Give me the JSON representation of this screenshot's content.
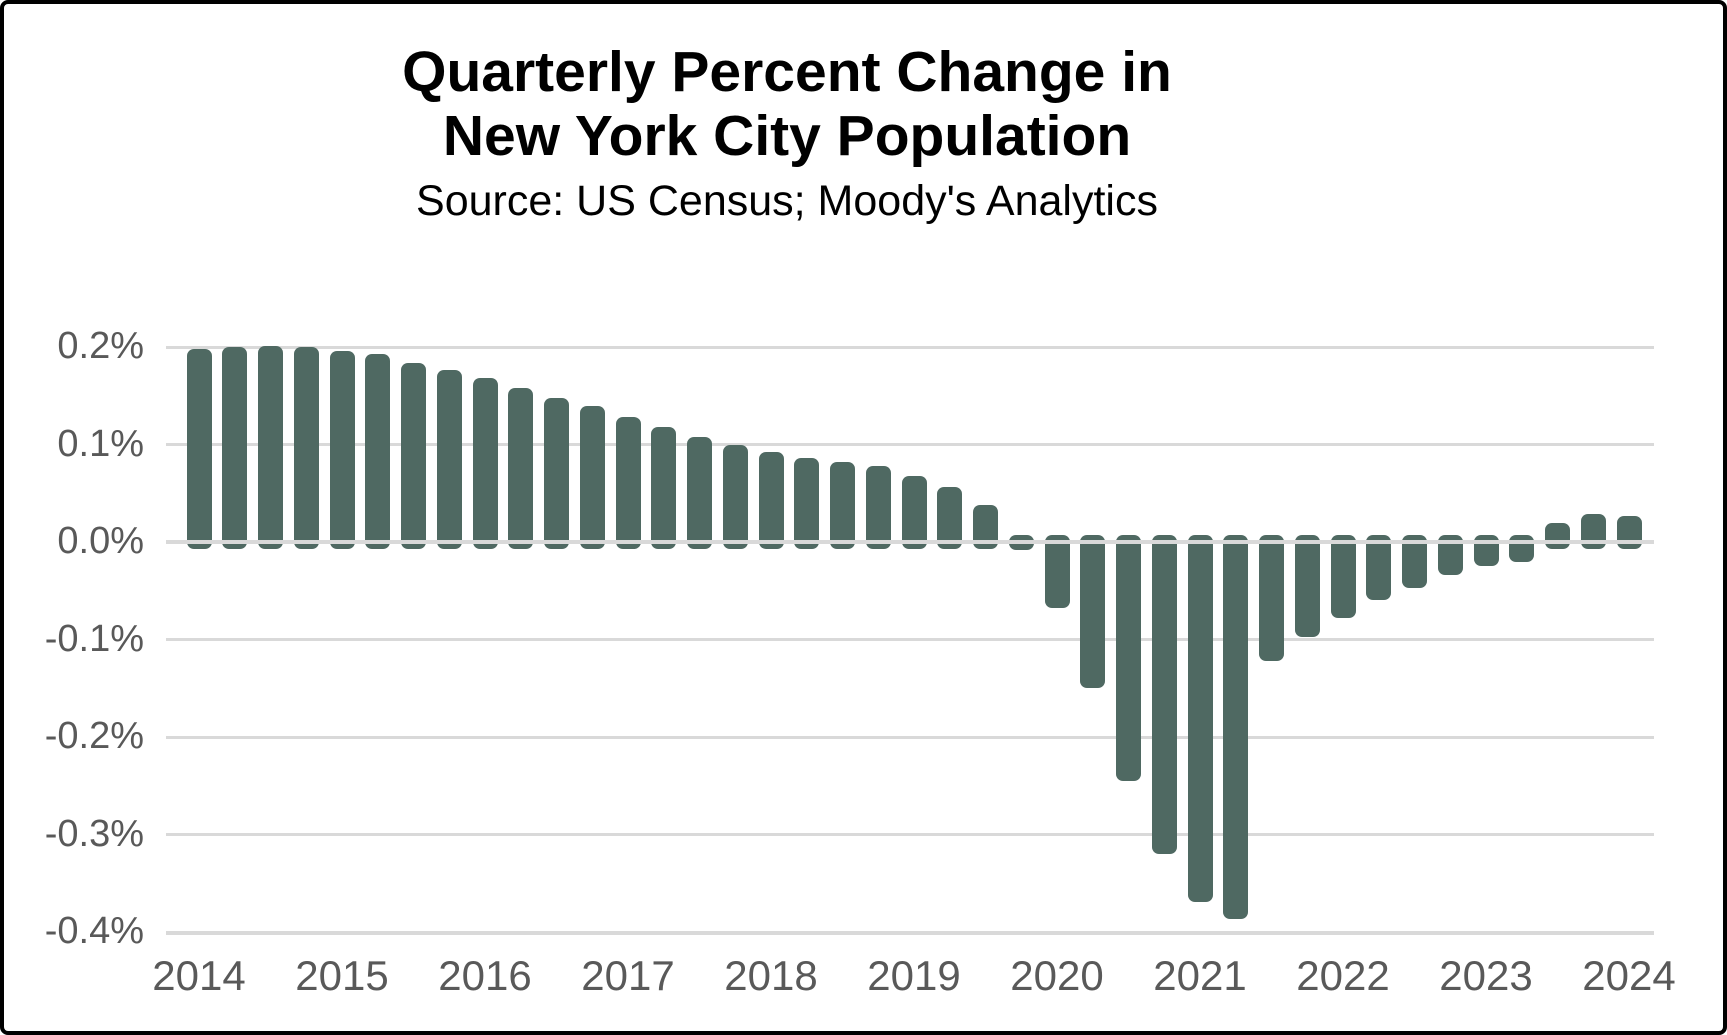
{
  "chart_data": {
    "type": "bar",
    "title": "Quarterly Percent Change in New York City Population",
    "title_line1": "Quarterly Percent Change in",
    "title_line2": "New York City Population",
    "subtitle": "Source: US Census; Moody's Analytics",
    "unit": "percent",
    "ylim": [
      -0.4,
      0.2
    ],
    "grid": true,
    "legend": false,
    "colors": {
      "bar": "#4f6962",
      "gridline": "#d9d9d9",
      "axis_label": "#595959",
      "title": "#000000",
      "background": "#ffffff",
      "frame_border": "#000000"
    },
    "y_ticks": [
      {
        "label": "0.2%",
        "value": 0.2
      },
      {
        "label": "0.1%",
        "value": 0.1
      },
      {
        "label": "0.0%",
        "value": 0.0
      },
      {
        "label": "-0.1%",
        "value": -0.1
      },
      {
        "label": "-0.2%",
        "value": -0.2
      },
      {
        "label": "-0.3%",
        "value": -0.3
      },
      {
        "label": "-0.4%",
        "value": -0.4
      }
    ],
    "x_year_labels": [
      "2014",
      "2015",
      "2016",
      "2017",
      "2018",
      "2019",
      "2020",
      "2021",
      "2022",
      "2023",
      "2024"
    ],
    "series": [
      {
        "quarter": "2014 Q1",
        "value": 0.198
      },
      {
        "quarter": "2014 Q2",
        "value": 0.2
      },
      {
        "quarter": "2014 Q3",
        "value": 0.201
      },
      {
        "quarter": "2014 Q4",
        "value": 0.2
      },
      {
        "quarter": "2015 Q1",
        "value": 0.196
      },
      {
        "quarter": "2015 Q2",
        "value": 0.193
      },
      {
        "quarter": "2015 Q3",
        "value": 0.184
      },
      {
        "quarter": "2015 Q4",
        "value": 0.176
      },
      {
        "quarter": "2016 Q1",
        "value": 0.168
      },
      {
        "quarter": "2016 Q2",
        "value": 0.158
      },
      {
        "quarter": "2016 Q3",
        "value": 0.148
      },
      {
        "quarter": "2016 Q4",
        "value": 0.139
      },
      {
        "quarter": "2017 Q1",
        "value": 0.128
      },
      {
        "quarter": "2017 Q2",
        "value": 0.118
      },
      {
        "quarter": "2017 Q3",
        "value": 0.108
      },
      {
        "quarter": "2017 Q4",
        "value": 0.099
      },
      {
        "quarter": "2018 Q1",
        "value": 0.092
      },
      {
        "quarter": "2018 Q2",
        "value": 0.086
      },
      {
        "quarter": "2018 Q3",
        "value": 0.082
      },
      {
        "quarter": "2018 Q4",
        "value": 0.078
      },
      {
        "quarter": "2019 Q1",
        "value": 0.068
      },
      {
        "quarter": "2019 Q2",
        "value": 0.056
      },
      {
        "quarter": "2019 Q3",
        "value": 0.038
      },
      {
        "quarter": "2019 Q4",
        "value": -0.008
      },
      {
        "quarter": "2020 Q1",
        "value": -0.068
      },
      {
        "quarter": "2020 Q2",
        "value": -0.15
      },
      {
        "quarter": "2020 Q3",
        "value": -0.245
      },
      {
        "quarter": "2020 Q4",
        "value": -0.32
      },
      {
        "quarter": "2021 Q1",
        "value": -0.369
      },
      {
        "quarter": "2021 Q2",
        "value": -0.387
      },
      {
        "quarter": "2021 Q3",
        "value": -0.122
      },
      {
        "quarter": "2021 Q4",
        "value": -0.097
      },
      {
        "quarter": "2022 Q1",
        "value": -0.078
      },
      {
        "quarter": "2022 Q2",
        "value": -0.059
      },
      {
        "quarter": "2022 Q3",
        "value": -0.047
      },
      {
        "quarter": "2022 Q4",
        "value": -0.034
      },
      {
        "quarter": "2023 Q1",
        "value": -0.025
      },
      {
        "quarter": "2023 Q2",
        "value": -0.021
      },
      {
        "quarter": "2023 Q3",
        "value": 0.02
      },
      {
        "quarter": "2023 Q4",
        "value": 0.029
      },
      {
        "quarter": "2024 Q1",
        "value": 0.027
      }
    ]
  }
}
